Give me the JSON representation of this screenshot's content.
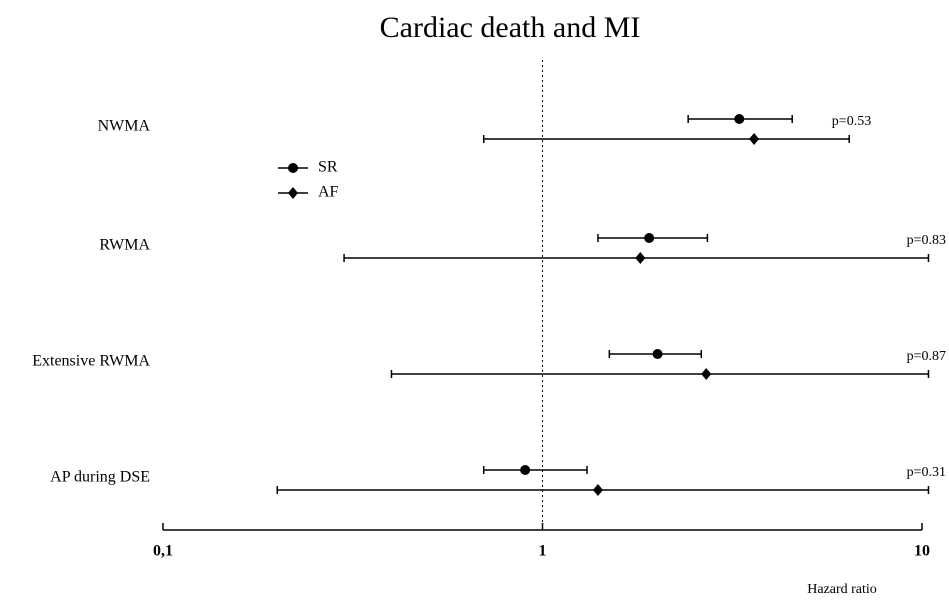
{
  "chart_data": {
    "type": "forest",
    "title": "Cardiac death and MI",
    "x_label": "Hazard ratio",
    "log_scale": true,
    "categories": [
      "NWMA",
      "RWMA",
      "Extensive RWMA",
      "AP during DSE"
    ],
    "series": [
      {
        "name": "SR",
        "marker": "circle",
        "color": "#000000",
        "values": [
          3.3,
          1.91,
          2.01,
          0.9
        ],
        "lower": [
          2.42,
          1.4,
          1.5,
          0.7
        ],
        "upper": [
          4.55,
          2.72,
          2.62,
          1.31
        ]
      },
      {
        "name": "AF",
        "marker": "diamond",
        "color": "#000000",
        "values": [
          3.61,
          1.81,
          2.7,
          1.4
        ],
        "lower": [
          0.7,
          0.3,
          0.4,
          0.2
        ],
        "upper": [
          6.43,
          10.4,
          10.4,
          10.4
        ]
      }
    ],
    "p_values": [
      "p=0.53",
      "p=0.83",
      "p=0.87",
      "p=0.31"
    ],
    "reference_line": 1,
    "xlim": [
      0.1,
      10
    ],
    "xticks": [
      {
        "value": 0.1,
        "label": "0,1"
      },
      1,
      10
    ]
  }
}
